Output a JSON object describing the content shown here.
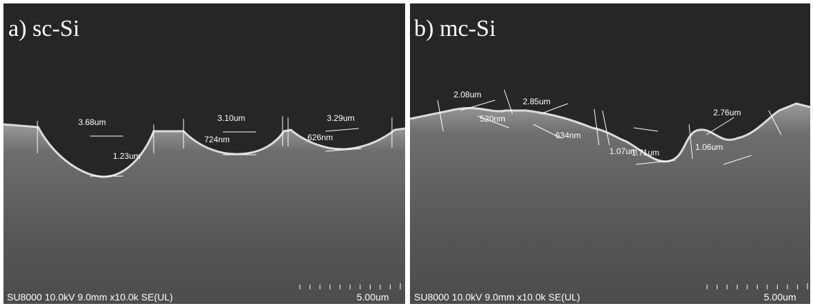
{
  "panels": [
    {
      "label": "a) sc-Si",
      "measurements": [
        "3.68um",
        "1.23um",
        "3.10um",
        "724nm",
        "3.29um",
        "626nm"
      ],
      "footer": "SU8000 10.0kV 9.0mm x10.0k SE(UL)",
      "scale_label": "5.00um"
    },
    {
      "label": "b) mc-Si",
      "measurements": [
        "2.08um",
        "520nm",
        "2.85um",
        "634nm",
        "1.07um",
        "1.71um",
        "1.06um",
        "2.76um"
      ],
      "footer": "SU8000 10.0kV 9.0mm x10.0k SE(UL)",
      "scale_label": "5.00um"
    }
  ]
}
